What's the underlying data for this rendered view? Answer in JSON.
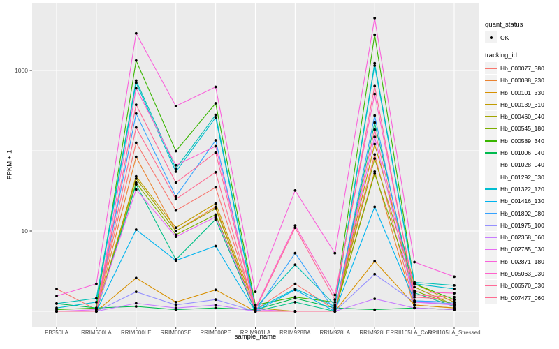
{
  "figure": {
    "x_axis_title": "sample_name",
    "y_axis_title": "FPKM + 1"
  },
  "legend": {
    "quant_status": {
      "title": "quant_status",
      "items": [
        {
          "label": "OK",
          "marker": "point-icon",
          "color": "#000000"
        }
      ]
    },
    "tracking_id": {
      "title": "tracking_id"
    }
  },
  "chart_data": {
    "type": "line",
    "title": "",
    "xlabel": "sample_name",
    "ylabel": "FPKM + 1",
    "y_scale": "log10",
    "values_are": "FPKM + 1 (as plotted on log10 axis)",
    "y_axis_ticks": [
      {
        "value": 1000,
        "label": "1000"
      },
      {
        "value": 10,
        "label": "10"
      }
    ],
    "y_gridline_values": [
      1000,
      100,
      10,
      1
    ],
    "ylim": [
      0.9,
      6800
    ],
    "grid": true,
    "legend_position": "right",
    "panel_background": "#EBEBEB",
    "gridline_color": "#FFFFFF",
    "point_color": "#000000",
    "point_shape": "filled-circle",
    "categories": [
      "PB350LA",
      "RRIM600LA",
      "RRIM600LE",
      "RRIM600SE",
      "RRIM600PE",
      "RRIM901LA",
      "RRIM928BA",
      "RRIM928LA",
      "RRIM928LE",
      "RRII105LA_Control",
      "RRII105LA_Stressed"
    ],
    "series": [
      {
        "name": "Hb_000077_380",
        "color": "#F8766D",
        "values": [
          1.9,
          1.05,
          126,
          18,
          35,
          1.05,
          2.2,
          1.05,
          90,
          1.2,
          1.1
        ]
      },
      {
        "name": "Hb_000088_230",
        "color": "#EA8331",
        "values": [
          1,
          1,
          84,
          10,
          20,
          1,
          1,
          1,
          55,
          1.1,
          1.05
        ]
      },
      {
        "name": "Hb_000101_330",
        "color": "#D89000",
        "values": [
          1,
          1,
          2.6,
          1.3,
          1.85,
          1,
          1,
          1,
          4.2,
          1.2,
          1.1
        ]
      },
      {
        "name": "Hb_000139_310",
        "color": "#C09B00",
        "values": [
          1,
          1,
          48,
          11,
          22,
          1.1,
          1,
          1,
          121,
          2.2,
          1.3
        ]
      },
      {
        "name": "Hb_000460_040",
        "color": "#A3A500",
        "values": [
          1,
          1,
          45,
          10,
          19,
          1,
          1,
          1,
          80,
          2.0,
          1.2
        ]
      },
      {
        "name": "Hb_000545_180",
        "color": "#7CAE00",
        "values": [
          1,
          1,
          40,
          9,
          16,
          1,
          1,
          1,
          52,
          1.8,
          1.2
        ]
      },
      {
        "name": "Hb_000589_340",
        "color": "#39B600",
        "values": [
          1.05,
          1.1,
          1330,
          99,
          390,
          1.2,
          1.5,
          1.3,
          2800,
          2.2,
          1.4
        ]
      },
      {
        "name": "Hb_001006_040",
        "color": "#00BB4E",
        "values": [
          1.25,
          1.1,
          1.15,
          1.05,
          1.1,
          1.05,
          1.45,
          1.1,
          1.05,
          1.1,
          1.05
        ]
      },
      {
        "name": "Hb_001028_040",
        "color": "#00C087",
        "values": [
          1,
          1,
          38,
          4.4,
          14,
          1,
          1.3,
          1,
          224,
          1.7,
          1.15
        ]
      },
      {
        "name": "Hb_001292_030",
        "color": "#00C0B5",
        "values": [
          1.25,
          1.45,
          750,
          60,
          280,
          1.1,
          3.8,
          1.2,
          1230,
          2.3,
          2.1
        ]
      },
      {
        "name": "Hb_001322_120",
        "color": "#00BDD0",
        "values": [
          1.1,
          1.3,
          700,
          55,
          260,
          1.05,
          1.9,
          1.15,
          1150,
          2.2,
          1.9
        ]
      },
      {
        "name": "Hb_001416_130",
        "color": "#00B4EF",
        "values": [
          1,
          1,
          10.4,
          4.3,
          6.5,
          1,
          1.85,
          1,
          20,
          1.35,
          1.3
        ]
      },
      {
        "name": "Hb_001892_080",
        "color": "#35A2FF",
        "values": [
          1,
          1,
          290,
          27,
          135,
          1,
          5.3,
          1,
          275,
          1.35,
          1.3
        ]
      },
      {
        "name": "Hb_001975_100",
        "color": "#9590FF",
        "values": [
          1,
          1,
          1.75,
          1.2,
          1.4,
          1,
          1,
          1,
          2.9,
          1.3,
          1.25
        ]
      },
      {
        "name": "Hb_002368_060",
        "color": "#C77CFF",
        "values": [
          1,
          1,
          1.26,
          1.1,
          1.2,
          1,
          1,
          1,
          1.43,
          1.1,
          1.05
        ]
      },
      {
        "name": "Hb_002785_030",
        "color": "#E76BF3",
        "values": [
          1,
          1.05,
          33,
          8.5,
          15,
          1.05,
          1,
          1,
          149,
          1.3,
          1.2
        ]
      },
      {
        "name": "Hb_002871_180",
        "color": "#FA62DB",
        "values": [
          1.55,
          2.2,
          2900,
          360,
          625,
          1.75,
          32,
          5.3,
          4500,
          4.1,
          2.7
        ]
      },
      {
        "name": "Hb_005063_030",
        "color": "#FF61CC",
        "values": [
          1,
          1,
          600,
          66,
          114,
          1.1,
          11.7,
          1.6,
          510,
          1.75,
          1.68
        ]
      },
      {
        "name": "Hb_006570_030",
        "color": "#FF6A98",
        "values": [
          1,
          1,
          374,
          40,
          95,
          1.05,
          11,
          1.4,
          640,
          1.6,
          1.5
        ]
      },
      {
        "name": "Hb_007477_060",
        "color": "#FF6C91",
        "values": [
          1,
          1,
          195,
          25,
          54,
          1,
          1,
          1,
          183,
          1.5,
          1.4
        ]
      }
    ]
  }
}
